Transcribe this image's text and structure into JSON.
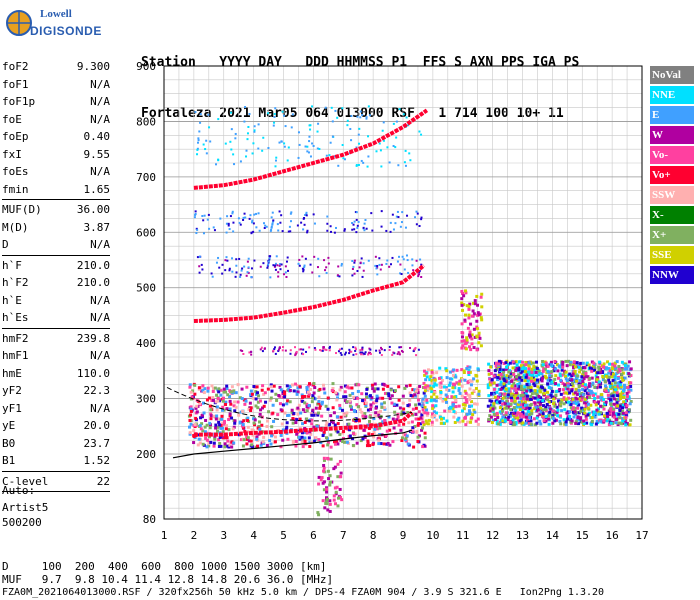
{
  "logo": {
    "line1": "Lowell",
    "line2": "DIGISONDE"
  },
  "header": {
    "row1": "Station   YYYY DAY   DDD HHMMSS P1  FFS S AXN PPS IGA PS",
    "row2": "Fortaleza 2021 Mar05 064 013000 RSF   1 714 100 10+ 11"
  },
  "params": [
    {
      "label": "foF2",
      "value": "9.300"
    },
    {
      "label": "foF1",
      "value": "N/A"
    },
    {
      "label": "foF1p",
      "value": "N/A"
    },
    {
      "label": "foE",
      "value": "N/A"
    },
    {
      "label": "foEp",
      "value": "0.40"
    },
    {
      "label": "fxI",
      "value": "9.55"
    },
    {
      "label": "foEs",
      "value": "N/A"
    },
    {
      "label": "fmin",
      "value": "1.65"
    },
    {
      "label": "MUF(D)",
      "value": "36.00"
    },
    {
      "label": "M(D)",
      "value": "3.87"
    },
    {
      "label": "D",
      "value": "N/A"
    },
    {
      "label": "h`F",
      "value": "210.0"
    },
    {
      "label": "h`F2",
      "value": "210.0"
    },
    {
      "label": "h`E",
      "value": "N/A"
    },
    {
      "label": "h`Es",
      "value": "N/A"
    },
    {
      "label": "hmF2",
      "value": "239.8"
    },
    {
      "label": "hmF1",
      "value": "N/A"
    },
    {
      "label": "hmE",
      "value": "110.0"
    },
    {
      "label": "yF2",
      "value": "22.3"
    },
    {
      "label": "yF1",
      "value": "N/A"
    },
    {
      "label": "yE",
      "value": "20.0"
    },
    {
      "label": "B0",
      "value": "23.7"
    },
    {
      "label": "B1",
      "value": "1.52"
    },
    {
      "label": "C-level",
      "value": "22"
    }
  ],
  "auto": {
    "line1": "Auto:",
    "line2": "Artist5",
    "line3": "500200"
  },
  "legend": [
    {
      "label": "NoVal",
      "color": "#808080"
    },
    {
      "label": "NNE",
      "color": "#00e0ff"
    },
    {
      "label": "E",
      "color": "#40a0ff"
    },
    {
      "label": "W",
      "color": "#b000a0"
    },
    {
      "label": "Vo-",
      "color": "#ff40a0"
    },
    {
      "label": "Vo+",
      "color": "#ff0030"
    },
    {
      "label": "SSW",
      "color": "#ffb0b0"
    },
    {
      "label": "X-",
      "color": "#008000"
    },
    {
      "label": "X+",
      "color": "#80b060"
    },
    {
      "label": "SSE",
      "color": "#d0d000"
    },
    {
      "label": "NNW",
      "color": "#2000d0"
    }
  ],
  "footer": {
    "dline": "D     100  200  400  600  800 1000 1500 3000 [km]",
    "mufline": "MUF   9.7  9.8 10.4 11.4 12.8 14.8 20.6 36.0 [MHz]",
    "fileline": "FZA0M_2021064013000.RSF / 320fx256h 50 kHz 5.0 km / DPS-4 FZA0M 904 / 3.9 S 321.6 E   Ion2Png 1.3.20"
  },
  "chart_data": {
    "type": "scatter",
    "title": "",
    "xlabel": "",
    "ylabel": "",
    "xlim": [
      1,
      17
    ],
    "ylim": [
      80,
      900
    ],
    "x_ticks": [
      1,
      2,
      3,
      4,
      5,
      6,
      7,
      8,
      9,
      10,
      11,
      12,
      13,
      14,
      15,
      16,
      17
    ],
    "y_ticks": [
      80,
      200,
      300,
      400,
      500,
      600,
      700,
      800,
      900
    ],
    "traces": [
      {
        "name": "F trace o",
        "color": "#ff0030",
        "points": [
          [
            2.0,
            235
          ],
          [
            3.0,
            235
          ],
          [
            4.0,
            238
          ],
          [
            5.0,
            240
          ],
          [
            6.0,
            244
          ],
          [
            7.0,
            247
          ],
          [
            8.0,
            250
          ],
          [
            9.0,
            260
          ],
          [
            9.3,
            275
          ]
        ]
      },
      {
        "name": "2F trace",
        "color": "#ff0030",
        "points": [
          [
            2.0,
            440
          ],
          [
            3.0,
            442
          ],
          [
            4.0,
            446
          ],
          [
            5.0,
            455
          ],
          [
            6.0,
            465
          ],
          [
            7.0,
            478
          ],
          [
            8.0,
            495
          ],
          [
            9.0,
            510
          ],
          [
            9.7,
            540
          ]
        ]
      },
      {
        "name": "3F trace",
        "color": "#ff0030",
        "points": [
          [
            2.0,
            680
          ],
          [
            3.0,
            685
          ],
          [
            4.0,
            695
          ],
          [
            5.0,
            710
          ],
          [
            6.0,
            725
          ],
          [
            7.0,
            740
          ],
          [
            8.0,
            760
          ],
          [
            9.0,
            790
          ],
          [
            9.8,
            820
          ]
        ]
      }
    ],
    "profile": {
      "name": "profile",
      "color": "#000000",
      "points": [
        [
          1.3,
          193
        ],
        [
          2,
          200
        ],
        [
          3,
          205
        ],
        [
          4,
          210
        ],
        [
          5,
          215
        ],
        [
          6,
          220
        ],
        [
          7,
          227
        ],
        [
          8,
          233
        ],
        [
          9,
          238
        ],
        [
          9.3,
          243
        ]
      ]
    }
  }
}
